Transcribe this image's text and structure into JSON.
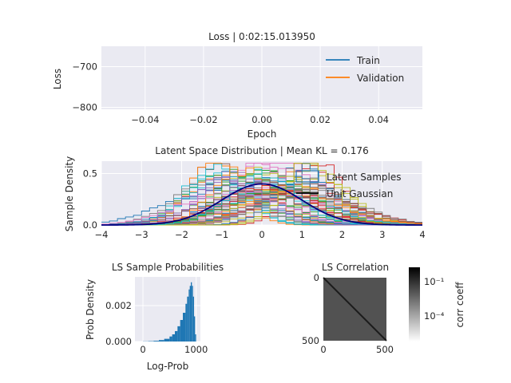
{
  "chart_data": [
    {
      "type": "line",
      "title": "Loss | 0:02:15.013950",
      "xlabel": "Epoch",
      "ylabel": "Loss",
      "xlim": [
        -0.055,
        0.055
      ],
      "ylim": [
        -805,
        -650
      ],
      "xticks": [
        -0.04,
        -0.02,
        0.0,
        0.02,
        0.04
      ],
      "xtick_labels": [
        "−0.04",
        "−0.02",
        "0.00",
        "0.02",
        "0.04"
      ],
      "yticks": [
        -800,
        -700
      ],
      "ytick_labels": [
        "−800",
        "−700"
      ],
      "grid": true,
      "legend_position": "upper-right",
      "series": [
        {
          "name": "Train",
          "color": "#1f77b4",
          "values": []
        },
        {
          "name": "Validation",
          "color": "#ff7f0e",
          "values": []
        }
      ]
    },
    {
      "type": "line",
      "title": "Latent Space Distribution | Mean KL = 0.176",
      "xlabel": "",
      "ylabel": "Sample Density",
      "xlim": [
        -4,
        4
      ],
      "ylim": [
        0,
        0.62
      ],
      "xticks": [
        -4,
        -3,
        -2,
        -1,
        0,
        1,
        2,
        3,
        4
      ],
      "xtick_labels": [
        "−4",
        "−3",
        "−2",
        "−1",
        "0",
        "1",
        "2",
        "3",
        "4"
      ],
      "yticks": [
        0.0,
        0.5
      ],
      "ytick_labels": [
        "0.0",
        "0.5"
      ],
      "grid": true,
      "legend_position": "upper-right",
      "series": [
        {
          "name": "Latent Samples",
          "style": "step histograms (many dimensions)",
          "color": "#1f77b4"
        },
        {
          "name": "Unit Gaussian",
          "color": "#000080",
          "mean": 0,
          "std": 1
        }
      ]
    },
    {
      "type": "bar",
      "title": "LS Sample Probabilities",
      "xlabel": "Log-Prob",
      "ylabel": "Prob Density",
      "xlim": [
        -150,
        1080
      ],
      "ylim": [
        0,
        0.0036
      ],
      "xticks": [
        0,
        1000
      ],
      "xtick_labels": [
        "0",
        "1000"
      ],
      "yticks": [
        0.0,
        0.002
      ],
      "ytick_labels": [
        "0.000",
        "0.002"
      ],
      "color": "#1f77b4",
      "x": [
        -100,
        0,
        100,
        200,
        300,
        400,
        500,
        550,
        600,
        650,
        700,
        750,
        800,
        830,
        860,
        880,
        900,
        920,
        940,
        960,
        980,
        1000
      ],
      "values": [
        0.0,
        1e-05,
        2e-05,
        4e-05,
        8e-05,
        0.00015,
        0.00028,
        0.0004,
        0.00058,
        0.00085,
        0.0012,
        0.0016,
        0.0021,
        0.0025,
        0.0029,
        0.0031,
        0.0033,
        0.0031,
        0.0025,
        0.0014,
        0.0004,
        0.0
      ]
    },
    {
      "type": "heatmap",
      "title": "LS Correlation",
      "xlim": [
        0,
        512
      ],
      "ylim": [
        512,
        0
      ],
      "xtick_labels": [
        "0",
        "500"
      ],
      "ytick_labels": [
        "0",
        "500"
      ],
      "colorbar_label": "corr coeff",
      "colorbar_scale": "log",
      "colorbar_tick_labels": [
        "10⁻¹",
        "10⁻⁴"
      ],
      "description": "diagonal"
    }
  ]
}
